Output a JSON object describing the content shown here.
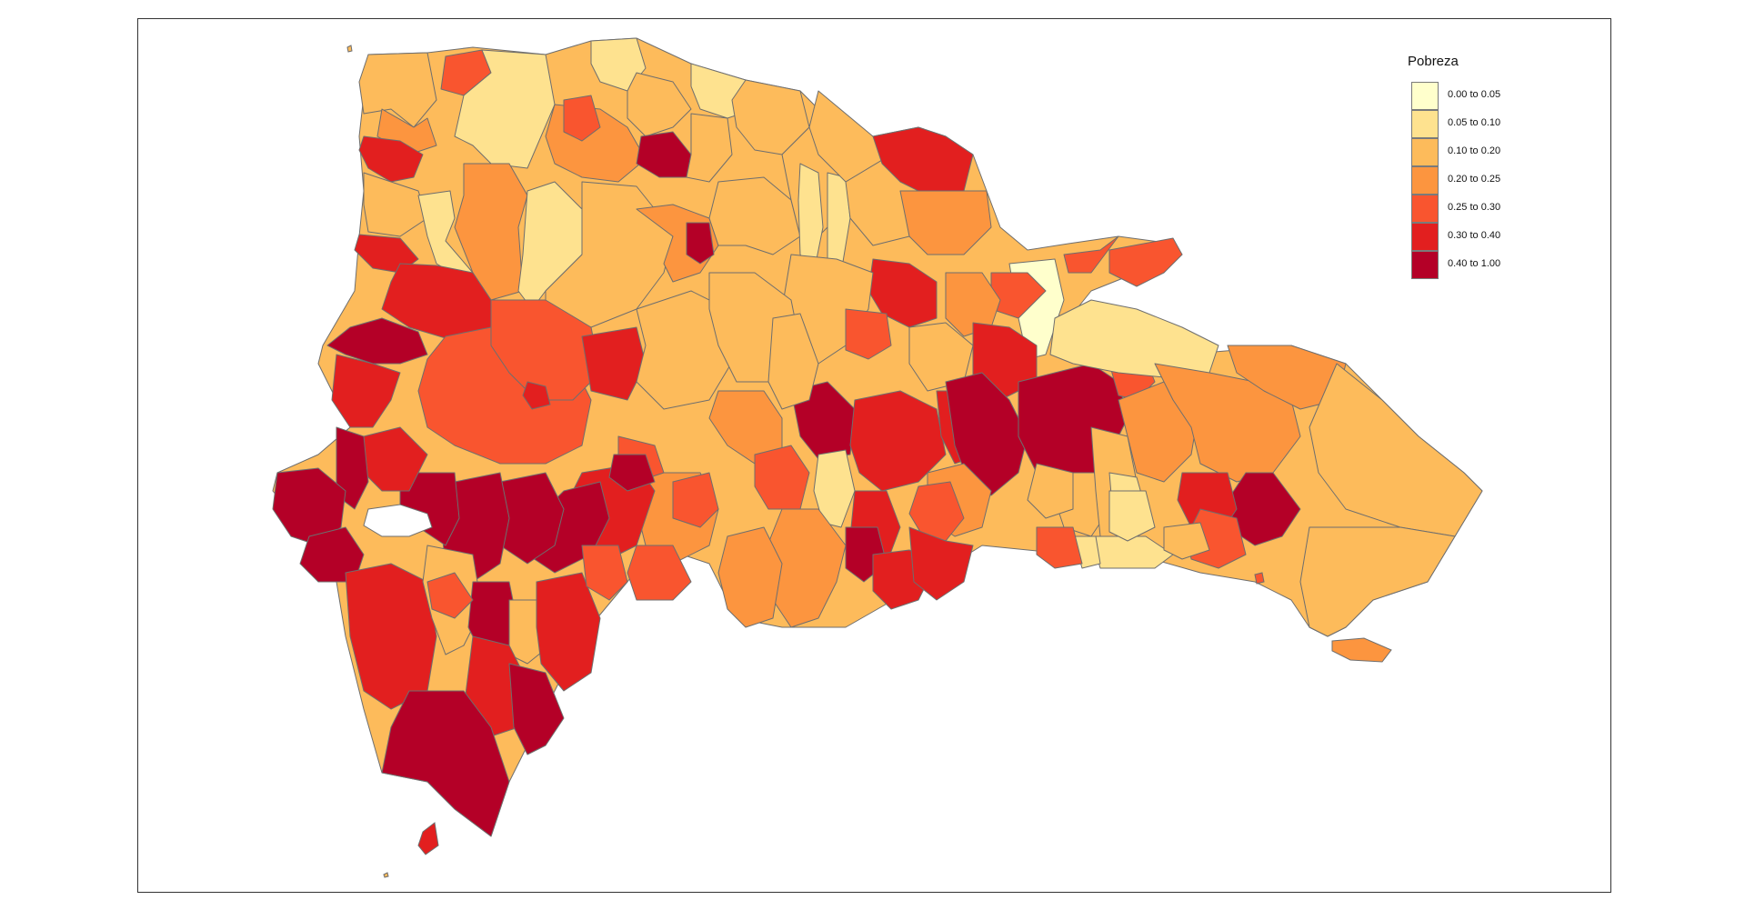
{
  "legend": {
    "title": "Pobreza",
    "items": [
      {
        "label": "0.00 to 0.05",
        "color": "#ffffcc"
      },
      {
        "label": "0.05 to 0.10",
        "color": "#fee28f"
      },
      {
        "label": "0.10 to 0.20",
        "color": "#fdbb5b"
      },
      {
        "label": "0.20 to 0.25",
        "color": "#fc953f"
      },
      {
        "label": "0.25 to 0.30",
        "color": "#f9552f"
      },
      {
        "label": "0.30 to 0.40",
        "color": "#e21f1f"
      },
      {
        "label": "0.40 to 1.00",
        "color": "#b40027"
      }
    ]
  },
  "colors": {
    "border": "#6e6e6e",
    "frame": "#333333",
    "background": "#ffffff"
  }
}
